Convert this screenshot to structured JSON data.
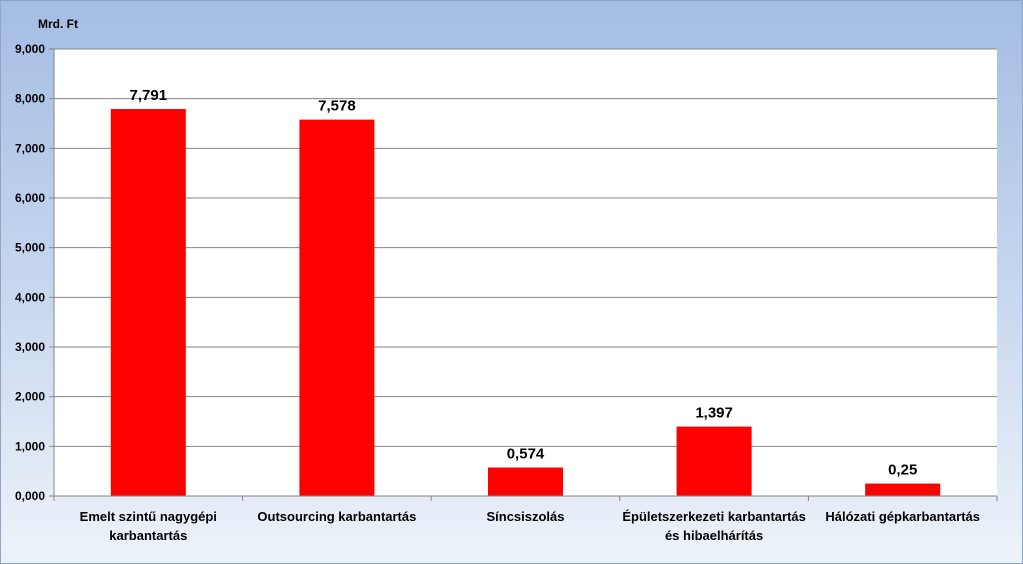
{
  "chart_data": {
    "type": "bar",
    "title": "",
    "unit_label": "Mrd. Ft",
    "xlabel": "",
    "ylabel": "",
    "ylim": [
      0,
      9
    ],
    "y_ticks": [
      0,
      1,
      2,
      3,
      4,
      5,
      6,
      7,
      8,
      9
    ],
    "y_tick_labels": [
      "0,000",
      "1,000",
      "2,000",
      "3,000",
      "4,000",
      "5,000",
      "6,000",
      "7,000",
      "8,000",
      "9,000"
    ],
    "categories": [
      [
        "Emelt szintű nagygépi",
        "karbantartás"
      ],
      [
        "Outsourcing karbantartás"
      ],
      [
        "Síncsiszolás"
      ],
      [
        "Épületszerkezeti karbantartás",
        "és hibaelhárítás"
      ],
      [
        "Hálózati gépkarbantartás"
      ]
    ],
    "values": [
      7.791,
      7.578,
      0.574,
      1.397,
      0.25
    ],
    "data_labels": [
      "7,791",
      "7,578",
      "0,574",
      "1,397",
      "0,25"
    ],
    "bar_color": "#ff0000",
    "grid": true,
    "legend": "none"
  }
}
